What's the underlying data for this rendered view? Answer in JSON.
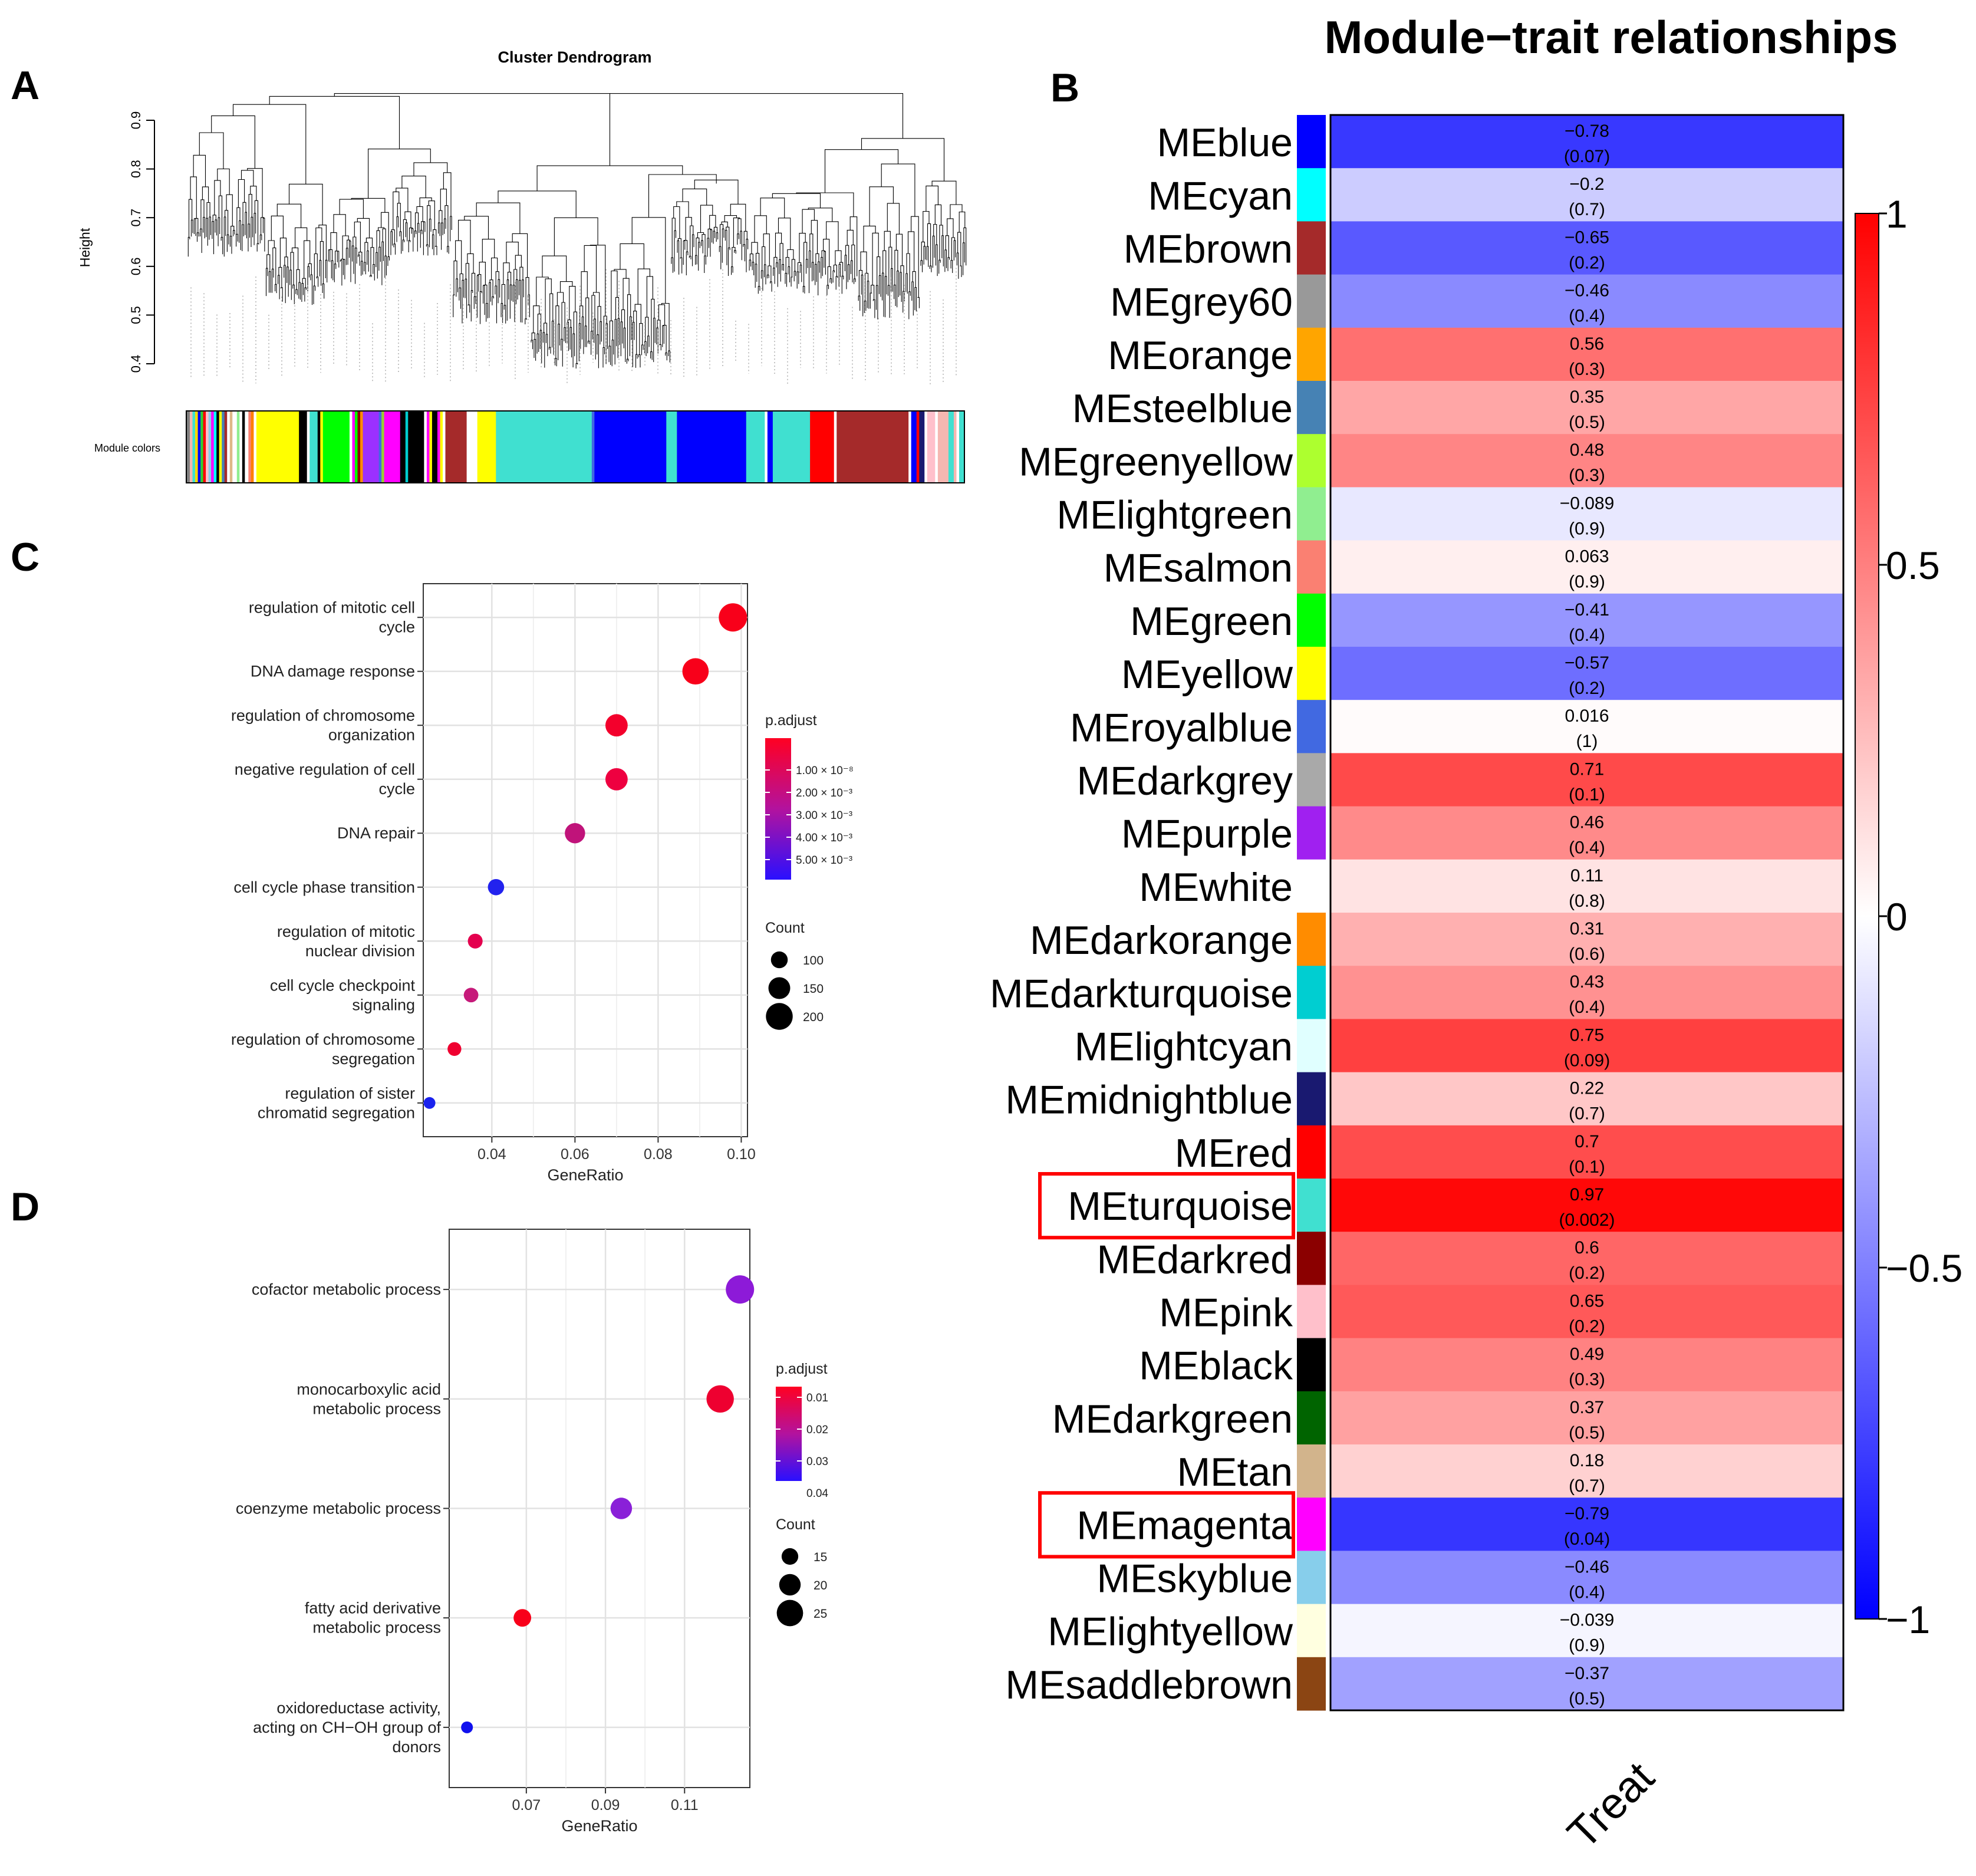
{
  "panel_letters": [
    "A",
    "B",
    "C",
    "D"
  ],
  "chart_data": [
    {
      "id": "A",
      "type": "dendrogram",
      "title": "Cluster Dendrogram",
      "ylabel": "Height",
      "yticks": [
        "0.4",
        "0.5",
        "0.6",
        "0.7",
        "0.8",
        "0.9"
      ],
      "ylim": [
        0.4,
        0.96
      ],
      "colorbar_label": "Module colors",
      "color_segments": [
        {
          "c": "#7f7f7f",
          "w": 0.4
        },
        {
          "c": "#f5b7b1",
          "w": 0.3
        },
        {
          "c": "#40e0d0",
          "w": 0.3
        },
        {
          "c": "#ffd700",
          "w": 0.3
        },
        {
          "c": "#0000ff",
          "w": 0.3
        },
        {
          "c": "#32cd32",
          "w": 0.3
        },
        {
          "c": "#ff0000",
          "w": 0.3
        },
        {
          "c": "#ffc0cb",
          "w": 0.3
        },
        {
          "c": "#87ceeb",
          "w": 0.3
        },
        {
          "c": "#ff00ff",
          "w": 0.3
        },
        {
          "c": "#00ffff",
          "w": 0.3
        },
        {
          "c": "#000000",
          "w": 0.3
        },
        {
          "c": "#ffff00",
          "w": 0.3
        },
        {
          "c": "#4682b4",
          "w": 0.3
        },
        {
          "c": "#a52a2a",
          "w": 0.3
        },
        {
          "c": "#ffffff",
          "w": 0.3
        },
        {
          "c": "#deb887",
          "w": 0.3
        },
        {
          "c": "#ffffff",
          "w": 0.5
        },
        {
          "c": "#90ee90",
          "w": 0.3
        },
        {
          "c": "#ffffff",
          "w": 0.3
        },
        {
          "c": "#000000",
          "w": 0.3
        },
        {
          "c": "#ffffff",
          "w": 0.4
        },
        {
          "c": "#fa8072",
          "w": 0.3
        },
        {
          "c": "#ff7f00",
          "w": 0.3
        },
        {
          "c": "#ffffff",
          "w": 0.3
        },
        {
          "c": "#ffff00",
          "w": 4.8
        },
        {
          "c": "#000000",
          "w": 0.9
        },
        {
          "c": "#ffffff",
          "w": 0.3
        },
        {
          "c": "#40e0d0",
          "w": 0.9
        },
        {
          "c": "#000000",
          "w": 0.3
        },
        {
          "c": "#ffff00",
          "w": 0.3
        },
        {
          "c": "#00ff00",
          "w": 3.0
        },
        {
          "c": "#ffffff",
          "w": 0.3
        },
        {
          "c": "#ff00ff",
          "w": 0.3
        },
        {
          "c": "#00ff00",
          "w": 0.3
        },
        {
          "c": "#8b0000",
          "w": 0.3
        },
        {
          "c": "#ff8c00",
          "w": 0.3
        },
        {
          "c": "#9b30ff",
          "w": 1.8
        },
        {
          "c": "#4169e1",
          "w": 0.3
        },
        {
          "c": "#9acd32",
          "w": 0.3
        },
        {
          "c": "#ff00ff",
          "w": 1.8
        },
        {
          "c": "#000000",
          "w": 0.6
        },
        {
          "c": "#00ced1",
          "w": 0.3
        },
        {
          "c": "#000000",
          "w": 1.8
        },
        {
          "c": "#ffffff",
          "w": 0.3
        },
        {
          "c": "#ff00ff",
          "w": 0.3
        },
        {
          "c": "#ffff00",
          "w": 0.3
        },
        {
          "c": "#000000",
          "w": 0.6
        },
        {
          "c": "#ff00ff",
          "w": 0.3
        },
        {
          "c": "#ffff00",
          "w": 0.3
        },
        {
          "c": "#ffffff",
          "w": 0.3
        },
        {
          "c": "#a52a2a",
          "w": 2.4
        },
        {
          "c": "#ffffff",
          "w": 1.2
        },
        {
          "c": "#ffff00",
          "w": 2.1
        },
        {
          "c": "#40e0d0",
          "w": 10.8
        },
        {
          "c": "#4169e1",
          "w": 0.3
        },
        {
          "c": "#0000ff",
          "w": 8.1
        },
        {
          "c": "#40e0d0",
          "w": 1.2
        },
        {
          "c": "#0000ff",
          "w": 7.8
        },
        {
          "c": "#40e0d0",
          "w": 2.1
        },
        {
          "c": "#ffffff",
          "w": 0.3
        },
        {
          "c": "#0000ff",
          "w": 0.6
        },
        {
          "c": "#40e0d0",
          "w": 4.2
        },
        {
          "c": "#ff0000",
          "w": 2.7
        },
        {
          "c": "#ffffff",
          "w": 0.3
        },
        {
          "c": "#a52a2a",
          "w": 8.1
        },
        {
          "c": "#ffffff",
          "w": 0.3
        },
        {
          "c": "#0000ff",
          "w": 0.6
        },
        {
          "c": "#ff0000",
          "w": 0.3
        },
        {
          "c": "#191970",
          "w": 0.6
        },
        {
          "c": "#ffffff",
          "w": 0.3
        },
        {
          "c": "#ffc0cb",
          "w": 0.9
        },
        {
          "c": "#ffffff",
          "w": 0.3
        },
        {
          "c": "#f5b7b1",
          "w": 1.2
        },
        {
          "c": "#40e0d0",
          "w": 0.6
        },
        {
          "c": "#f5b7b1",
          "w": 0.3
        },
        {
          "c": "#ffffff",
          "w": 0.3
        },
        {
          "c": "#40e0d0",
          "w": 0.6
        }
      ]
    },
    {
      "id": "B",
      "type": "heatmap",
      "title": "Module−trait relationships",
      "xlabel_columns": [
        "Treat"
      ],
      "colorbar_ticks": [
        "1",
        "0.5",
        "0",
        "−0.5",
        "−1"
      ],
      "value_range": [
        -1,
        1
      ],
      "highlighted": [
        "MEturquoise",
        "MEmagenta"
      ],
      "rows": [
        {
          "label": "MEblue",
          "color": "#0000ff",
          "value": -0.78,
          "value_text": "−0.78",
          "p_text": "(0.07)"
        },
        {
          "label": "MEcyan",
          "color": "#00ffff",
          "value": -0.2,
          "value_text": "−0.2",
          "p_text": "(0.7)"
        },
        {
          "label": "MEbrown",
          "color": "#a52a2a",
          "value": -0.65,
          "value_text": "−0.65",
          "p_text": "(0.2)"
        },
        {
          "label": "MEgrey60",
          "color": "#999999",
          "value": -0.46,
          "value_text": "−0.46",
          "p_text": "(0.4)"
        },
        {
          "label": "MEorange",
          "color": "#ffa500",
          "value": 0.56,
          "value_text": "0.56",
          "p_text": "(0.3)"
        },
        {
          "label": "MEsteelblue",
          "color": "#4682b4",
          "value": 0.35,
          "value_text": "0.35",
          "p_text": "(0.5)"
        },
        {
          "label": "MEgreenyellow",
          "color": "#adff2f",
          "value": 0.48,
          "value_text": "0.48",
          "p_text": "(0.3)"
        },
        {
          "label": "MElightgreen",
          "color": "#90ee90",
          "value": -0.089,
          "value_text": "−0.089",
          "p_text": "(0.9)"
        },
        {
          "label": "MEsalmon",
          "color": "#fa8072",
          "value": 0.063,
          "value_text": "0.063",
          "p_text": "(0.9)"
        },
        {
          "label": "MEgreen",
          "color": "#00ff00",
          "value": -0.41,
          "value_text": "−0.41",
          "p_text": "(0.4)"
        },
        {
          "label": "MEyellow",
          "color": "#ffff00",
          "value": -0.57,
          "value_text": "−0.57",
          "p_text": "(0.2)"
        },
        {
          "label": "MEroyalblue",
          "color": "#4169e1",
          "value": 0.016,
          "value_text": "0.016",
          "p_text": "(1)"
        },
        {
          "label": "MEdarkgrey",
          "color": "#a9a9a9",
          "value": 0.71,
          "value_text": "0.71",
          "p_text": "(0.1)"
        },
        {
          "label": "MEpurple",
          "color": "#a020f0",
          "value": 0.46,
          "value_text": "0.46",
          "p_text": "(0.4)"
        },
        {
          "label": "MEwhite",
          "color": "#ffffff",
          "value": 0.11,
          "value_text": "0.11",
          "p_text": "(0.8)"
        },
        {
          "label": "MEdarkorange",
          "color": "#ff8c00",
          "value": 0.31,
          "value_text": "0.31",
          "p_text": "(0.6)"
        },
        {
          "label": "MEdarkturquoise",
          "color": "#00ced1",
          "value": 0.43,
          "value_text": "0.43",
          "p_text": "(0.4)"
        },
        {
          "label": "MElightcyan",
          "color": "#e0ffff",
          "value": 0.75,
          "value_text": "0.75",
          "p_text": "(0.09)"
        },
        {
          "label": "MEmidnightblue",
          "color": "#191970",
          "value": 0.22,
          "value_text": "0.22",
          "p_text": "(0.7)"
        },
        {
          "label": "MEred",
          "color": "#ff0000",
          "value": 0.7,
          "value_text": "0.7",
          "p_text": "(0.1)"
        },
        {
          "label": "MEturquoise",
          "color": "#40e0d0",
          "value": 0.97,
          "value_text": "0.97",
          "p_text": "(0.002)"
        },
        {
          "label": "MEdarkred",
          "color": "#8b0000",
          "value": 0.6,
          "value_text": "0.6",
          "p_text": "(0.2)"
        },
        {
          "label": "MEpink",
          "color": "#ffc0cb",
          "value": 0.65,
          "value_text": "0.65",
          "p_text": "(0.2)"
        },
        {
          "label": "MEblack",
          "color": "#000000",
          "value": 0.49,
          "value_text": "0.49",
          "p_text": "(0.3)"
        },
        {
          "label": "MEdarkgreen",
          "color": "#006400",
          "value": 0.37,
          "value_text": "0.37",
          "p_text": "(0.5)"
        },
        {
          "label": "MEtan",
          "color": "#d2b48c",
          "value": 0.18,
          "value_text": "0.18",
          "p_text": "(0.7)"
        },
        {
          "label": "MEmagenta",
          "color": "#ff00ff",
          "value": -0.79,
          "value_text": "−0.79",
          "p_text": "(0.04)"
        },
        {
          "label": "MEskyblue",
          "color": "#87ceeb",
          "value": -0.46,
          "value_text": "−0.46",
          "p_text": "(0.4)"
        },
        {
          "label": "MElightyellow",
          "color": "#ffffe0",
          "value": -0.039,
          "value_text": "−0.039",
          "p_text": "(0.9)"
        },
        {
          "label": "MEsaddlebrown",
          "color": "#8b4513",
          "value": -0.37,
          "value_text": "−0.37",
          "p_text": "(0.5)"
        }
      ]
    },
    {
      "id": "C",
      "type": "scatter",
      "xlabel": "GeneRatio",
      "xticks": [
        0.04,
        0.06,
        0.08,
        0.1
      ],
      "xtick_labels": [
        "0.04",
        "0.06",
        "0.08",
        "0.10"
      ],
      "xlim": [
        0.0235,
        0.1015
      ],
      "color_legend": {
        "title": "p.adjust",
        "ticks": [
          "1.00 × 10⁻⁸",
          "2.00 × 10⁻³",
          "3.00 × 10⁻³",
          "4.00 × 10⁻³",
          "5.00 × 10⁻³"
        ]
      },
      "size_legend": {
        "title": "Count",
        "values": [
          100,
          150,
          200
        ],
        "labels": [
          "100",
          "150",
          "200"
        ]
      },
      "points": [
        {
          "term": [
            "regulation of mitotic cell",
            "cycle"
          ],
          "x": 0.098,
          "count": 215,
          "color": "#f8001a"
        },
        {
          "term": [
            "DNA damage response"
          ],
          "x": 0.089,
          "count": 195,
          "color": "#f8001a"
        },
        {
          "term": [
            "regulation of chromosome",
            "organization"
          ],
          "x": 0.07,
          "count": 155,
          "color": "#f3002c"
        },
        {
          "term": [
            "negative regulation of cell",
            "cycle"
          ],
          "x": 0.07,
          "count": 155,
          "color": "#ee0040"
        },
        {
          "term": [
            "DNA repair"
          ],
          "x": 0.06,
          "count": 135,
          "color": "#c0137a"
        },
        {
          "term": [
            "cell cycle phase transition"
          ],
          "x": 0.041,
          "count": 95,
          "color": "#2222ee"
        },
        {
          "term": [
            "regulation of mitotic",
            "nuclear division"
          ],
          "x": 0.036,
          "count": 80,
          "color": "#e4004e"
        },
        {
          "term": [
            "cell cycle checkpoint",
            "signaling"
          ],
          "x": 0.035,
          "count": 78,
          "color": "#c61a7a"
        },
        {
          "term": [
            "regulation of chromosome",
            "segregation"
          ],
          "x": 0.031,
          "count": 70,
          "color": "#ef0030"
        },
        {
          "term": [
            "regulation of sister",
            "chromatid segregation"
          ],
          "x": 0.025,
          "count": 50,
          "color": "#1a22ee"
        }
      ]
    },
    {
      "id": "D",
      "type": "scatter",
      "xlabel": "GeneRatio",
      "xticks": [
        0.07,
        0.09,
        0.11
      ],
      "xtick_labels": [
        "0.07",
        "0.09",
        "0.11"
      ],
      "xlim": [
        0.0505,
        0.1265
      ],
      "color_legend": {
        "title": "p.adjust",
        "ticks": [
          "0.01",
          "0.02",
          "0.03",
          "0.04"
        ]
      },
      "size_legend": {
        "title": "Count",
        "values": [
          15,
          20,
          25
        ],
        "labels": [
          "15",
          "20",
          "25"
        ]
      },
      "points": [
        {
          "term": [
            "cofactor metabolic process"
          ],
          "x": 0.124,
          "count": 27,
          "color": "#8d1ad8"
        },
        {
          "term": [
            "monocarboxylic acid",
            "metabolic process"
          ],
          "x": 0.119,
          "count": 26,
          "color": "#ee0030"
        },
        {
          "term": [
            "coenzyme metabolic process"
          ],
          "x": 0.094,
          "count": 20,
          "color": "#8a20d8"
        },
        {
          "term": [
            "fatty acid derivative",
            "metabolic process"
          ],
          "x": 0.069,
          "count": 16,
          "color": "#f8001a"
        },
        {
          "term": [
            "oxidoreductase activity,",
            "acting on CH−OH group of",
            "donors"
          ],
          "x": 0.055,
          "count": 10,
          "color": "#1010ee"
        }
      ]
    }
  ]
}
